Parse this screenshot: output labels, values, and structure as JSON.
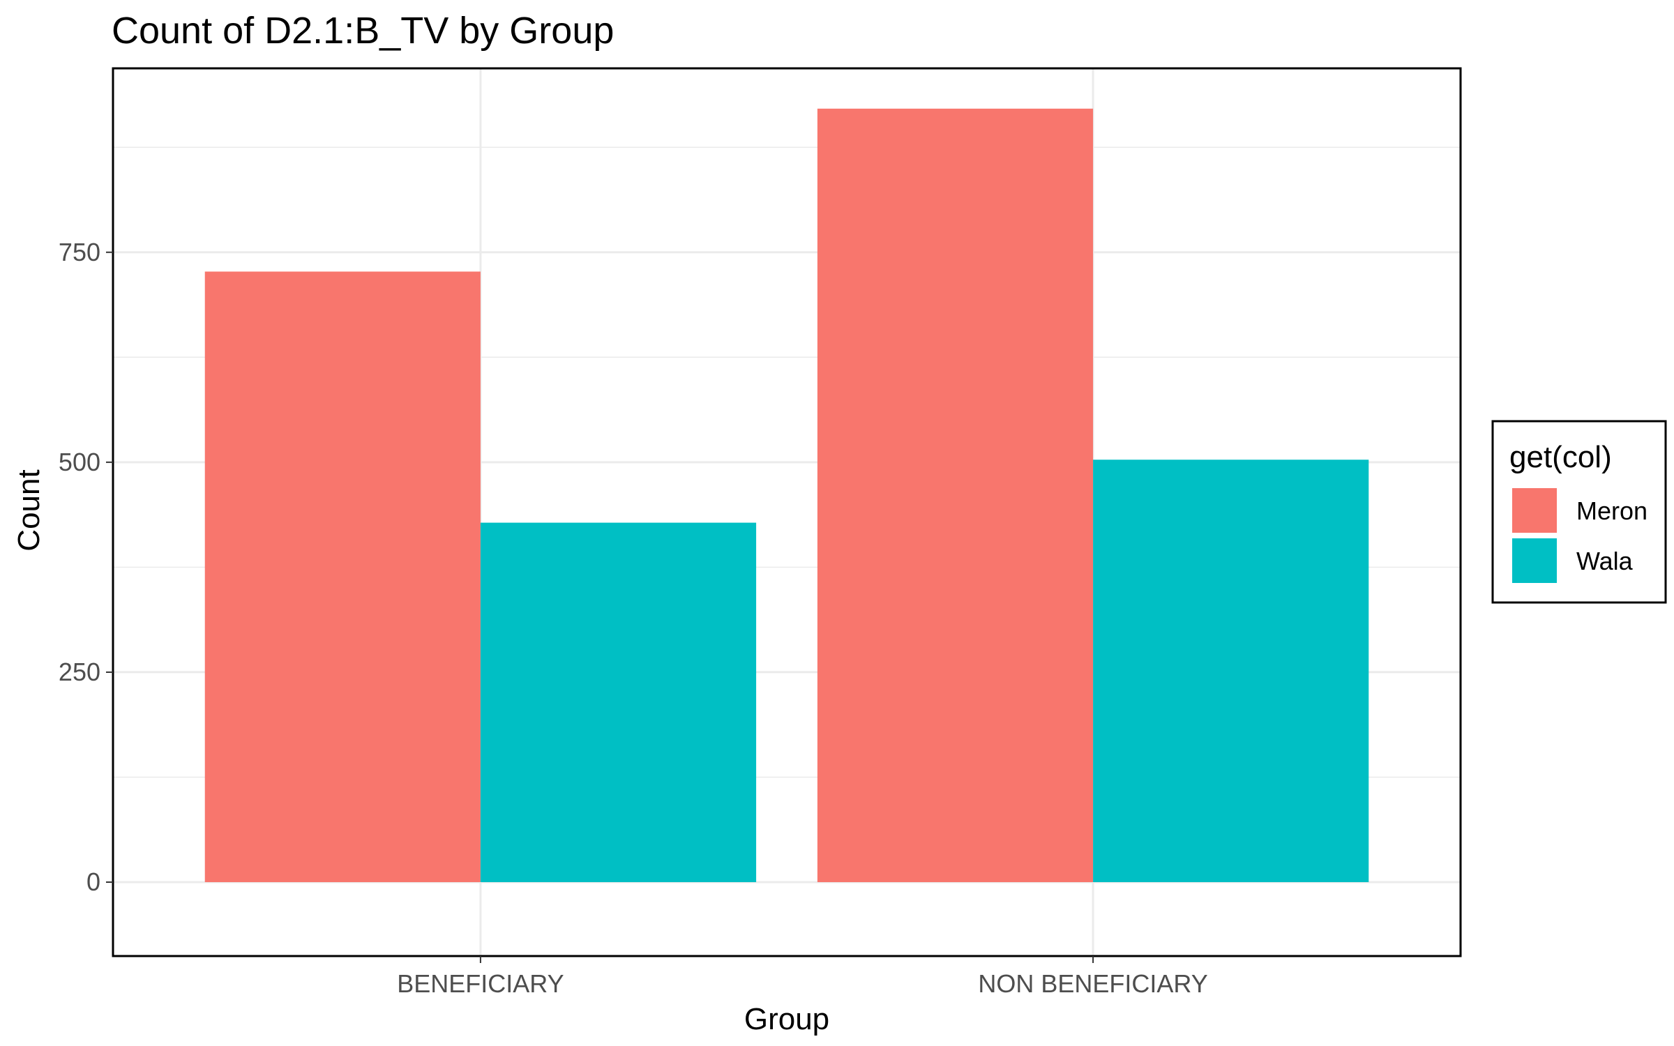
{
  "chart_data": {
    "type": "bar",
    "title": "Count of D2.1:B_TV by Group",
    "xlabel": "Group",
    "ylabel": "Count",
    "categories": [
      "BENEFICIARY",
      "NON BENEFICIARY"
    ],
    "series": [
      {
        "name": "Meron",
        "values": [
          727,
          921
        ],
        "color": "#F8766D"
      },
      {
        "name": "Wala",
        "values": [
          428,
          503
        ],
        "color": "#00BFC4"
      }
    ],
    "ylim": [
      -88,
      969
    ],
    "yticks": [
      0,
      250,
      500,
      750
    ],
    "y_minor_ticks": [
      125,
      375,
      625,
      875
    ],
    "grid": true,
    "legend": {
      "title": "get(col)",
      "placement": "right"
    }
  }
}
